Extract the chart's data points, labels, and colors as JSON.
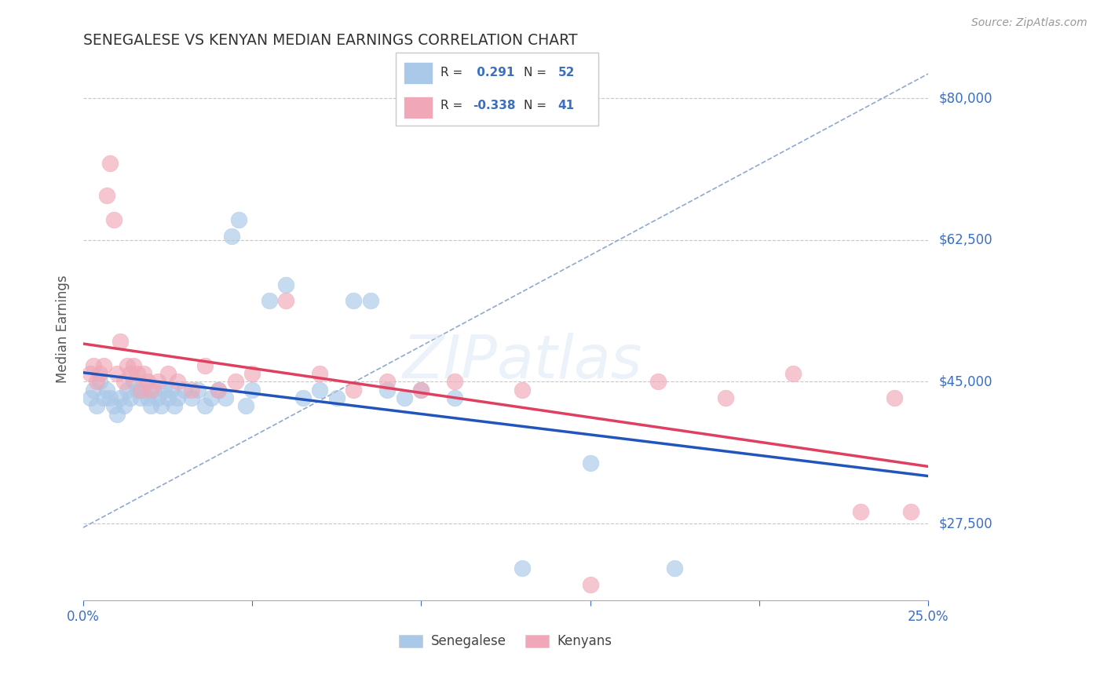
{
  "title": "SENEGALESE VS KENYAN MEDIAN EARNINGS CORRELATION CHART",
  "source": "Source: ZipAtlas.com",
  "ylabel": "Median Earnings",
  "xlim": [
    0.0,
    0.25
  ],
  "ylim": [
    18000,
    85000
  ],
  "ytick_labels": [
    "$27,500",
    "$45,000",
    "$62,500",
    "$80,000"
  ],
  "ytick_positions": [
    27500,
    45000,
    62500,
    80000
  ],
  "background_color": "#ffffff",
  "grid_color": "#c8c8c8",
  "legend_r_senegalese": "0.291",
  "legend_r_kenyans": "-0.338",
  "legend_n_senegalese": "52",
  "legend_n_kenyans": "41",
  "senegalese_color": "#aac8e8",
  "kenyans_color": "#f0a8b8",
  "senegalese_line_color": "#2255bb",
  "kenyans_line_color": "#e04060",
  "dashed_line_color": "#90a8d0",
  "senegalese_x": [
    0.002,
    0.003,
    0.004,
    0.005,
    0.006,
    0.007,
    0.008,
    0.009,
    0.01,
    0.011,
    0.012,
    0.013,
    0.014,
    0.015,
    0.016,
    0.017,
    0.018,
    0.019,
    0.02,
    0.021,
    0.022,
    0.023,
    0.024,
    0.025,
    0.026,
    0.027,
    0.028,
    0.03,
    0.032,
    0.034,
    0.036,
    0.038,
    0.04,
    0.042,
    0.044,
    0.046,
    0.048,
    0.05,
    0.055,
    0.06,
    0.065,
    0.07,
    0.075,
    0.08,
    0.085,
    0.09,
    0.095,
    0.1,
    0.11,
    0.13,
    0.15,
    0.175
  ],
  "senegalese_y": [
    43000,
    44000,
    42000,
    45000,
    43000,
    44000,
    43000,
    42000,
    41000,
    43000,
    42000,
    44000,
    43000,
    45000,
    44000,
    43000,
    44000,
    43000,
    42000,
    44000,
    43000,
    42000,
    44000,
    43000,
    44000,
    42000,
    43000,
    44000,
    43000,
    44000,
    42000,
    43000,
    44000,
    43000,
    63000,
    65000,
    42000,
    44000,
    55000,
    57000,
    43000,
    44000,
    43000,
    55000,
    55000,
    44000,
    43000,
    44000,
    43000,
    22000,
    35000,
    22000
  ],
  "kenyans_x": [
    0.002,
    0.003,
    0.004,
    0.005,
    0.006,
    0.007,
    0.008,
    0.009,
    0.01,
    0.011,
    0.012,
    0.013,
    0.014,
    0.015,
    0.016,
    0.017,
    0.018,
    0.019,
    0.02,
    0.022,
    0.025,
    0.028,
    0.032,
    0.036,
    0.04,
    0.045,
    0.05,
    0.06,
    0.07,
    0.08,
    0.09,
    0.1,
    0.11,
    0.13,
    0.15,
    0.17,
    0.19,
    0.21,
    0.23,
    0.24,
    0.245
  ],
  "kenyans_y": [
    46000,
    47000,
    45000,
    46000,
    47000,
    68000,
    72000,
    65000,
    46000,
    50000,
    45000,
    47000,
    46000,
    47000,
    46000,
    44000,
    46000,
    45000,
    44000,
    45000,
    46000,
    45000,
    44000,
    47000,
    44000,
    45000,
    46000,
    55000,
    46000,
    44000,
    45000,
    44000,
    45000,
    44000,
    20000,
    45000,
    43000,
    46000,
    29000,
    43000,
    29000
  ]
}
